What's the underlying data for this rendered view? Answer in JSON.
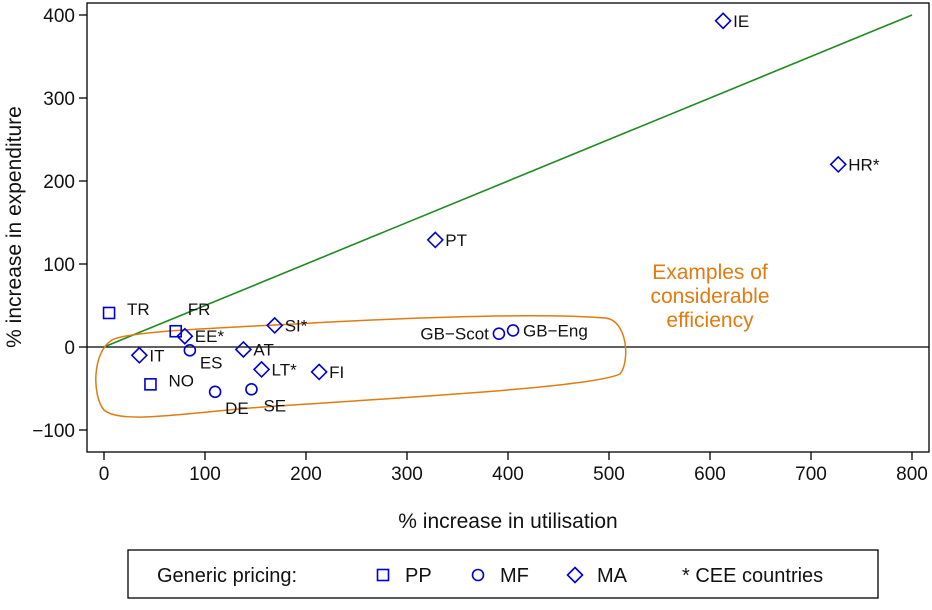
{
  "chart_data": {
    "type": "scatter",
    "xlabel": "% increase in utilisation",
    "ylabel": "% increase in expenditure",
    "xlim": [
      -10,
      815
    ],
    "ylim": [
      -125,
      415
    ],
    "xticks": [
      0,
      100,
      200,
      300,
      400,
      500,
      600,
      700,
      800
    ],
    "yticks": [
      -100,
      0,
      100,
      200,
      300,
      400
    ],
    "xtick_labels": [
      "0",
      "100",
      "200",
      "300",
      "400",
      "500",
      "600",
      "700",
      "800"
    ],
    "ytick_labels": [
      "−100",
      "0",
      "100",
      "200",
      "300",
      "400"
    ],
    "reference_line": {
      "from": [
        0,
        0
      ],
      "to": [
        800,
        400
      ],
      "color": "#1f8a1f"
    },
    "zero_line": {
      "y": 0
    },
    "colors": {
      "points": "#0000cc",
      "reference": "#1f8a1f",
      "annotation": "#e07b10",
      "axis": "#000000"
    },
    "points": [
      {
        "label": "IE",
        "x": 613,
        "y": 393,
        "marker": "diamond"
      },
      {
        "label": "HR*",
        "x": 727,
        "y": 220,
        "marker": "diamond"
      },
      {
        "label": "PT",
        "x": 328,
        "y": 129,
        "marker": "diamond"
      },
      {
        "label": "TR",
        "x": 5,
        "y": 41,
        "marker": "square"
      },
      {
        "label": "FR",
        "x": 71,
        "y": 19,
        "marker": "square"
      },
      {
        "label": "EE*",
        "x": 80,
        "y": 13,
        "marker": "diamond"
      },
      {
        "label": "SI*",
        "x": 169,
        "y": 26,
        "marker": "diamond"
      },
      {
        "label": "GB−Scot",
        "x": 391,
        "y": 16,
        "marker": "circle"
      },
      {
        "label": "GB−Eng",
        "x": 405,
        "y": 20,
        "marker": "circle"
      },
      {
        "label": "IT",
        "x": 35,
        "y": -10,
        "marker": "diamond"
      },
      {
        "label": "ES",
        "x": 85,
        "y": -4,
        "marker": "circle"
      },
      {
        "label": "AT",
        "x": 138,
        "y": -3,
        "marker": "diamond"
      },
      {
        "label": "LT*",
        "x": 156,
        "y": -27,
        "marker": "diamond"
      },
      {
        "label": "FI",
        "x": 213,
        "y": -30,
        "marker": "diamond"
      },
      {
        "label": "NO",
        "x": 46,
        "y": -45,
        "marker": "square"
      },
      {
        "label": "DE",
        "x": 110,
        "y": -54,
        "marker": "circle"
      },
      {
        "label": "SE",
        "x": 146,
        "y": -51,
        "marker": "circle"
      }
    ],
    "annotation": {
      "lines": [
        "Examples of",
        "considerable",
        "efficiency"
      ]
    },
    "legend": {
      "title": "Generic pricing:",
      "items": [
        {
          "marker": "square",
          "label": "PP"
        },
        {
          "marker": "circle",
          "label": "MF"
        },
        {
          "marker": "diamond",
          "label": "MA"
        }
      ],
      "note": "* CEE countries",
      "position": "bottom"
    }
  }
}
